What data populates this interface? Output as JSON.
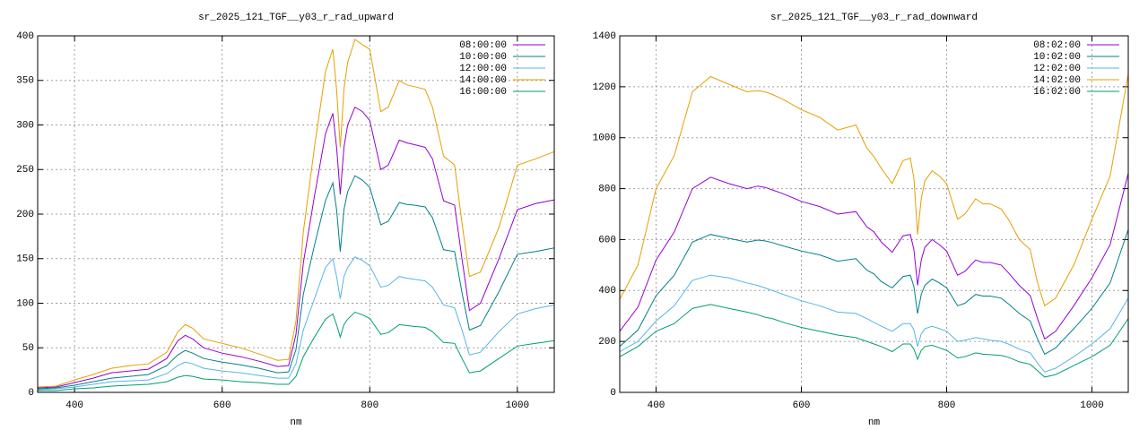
{
  "chart_data": [
    {
      "type": "line",
      "title": "sr_2025_121_TGF__y03_r_rad_upward",
      "x_label": "nm",
      "x": [
        350,
        375,
        400,
        425,
        450,
        475,
        500,
        525,
        540,
        550,
        560,
        575,
        600,
        625,
        650,
        675,
        690,
        700,
        710,
        725,
        740,
        750,
        755,
        760,
        765,
        770,
        780,
        790,
        800,
        815,
        825,
        840,
        850,
        860,
        875,
        885,
        900,
        915,
        925,
        935,
        950,
        975,
        1000,
        1025,
        1050
      ],
      "xlim": [
        350,
        1050
      ],
      "xticks": [
        400,
        600,
        800,
        1000
      ],
      "ylim": [
        0,
        400
      ],
      "yticks": [
        0,
        50,
        100,
        150,
        200,
        250,
        300,
        350,
        400
      ],
      "grid": true,
      "legend": "top-right",
      "series": [
        {
          "name": "08:00:00",
          "color": "#9400d3",
          "values": [
            5,
            6,
            11,
            16,
            22,
            24,
            26,
            38,
            58,
            64,
            60,
            50,
            44,
            40,
            35,
            29,
            30,
            65,
            145,
            220,
            290,
            313,
            275,
            222,
            275,
            300,
            320,
            315,
            305,
            250,
            255,
            283,
            280,
            278,
            275,
            262,
            215,
            210,
            150,
            92,
            100,
            150,
            205,
            212,
            216
          ]
        },
        {
          "name": "10:00:00",
          "color": "#00808a",
          "values": [
            4,
            5,
            8,
            12,
            16,
            18,
            20,
            30,
            42,
            47,
            44,
            38,
            34,
            31,
            27,
            22,
            23,
            48,
            110,
            165,
            215,
            235,
            205,
            158,
            205,
            225,
            243,
            238,
            230,
            188,
            192,
            213,
            211,
            210,
            208,
            196,
            160,
            158,
            112,
            70,
            75,
            113,
            155,
            158,
            162
          ]
        },
        {
          "name": "12:00:00",
          "color": "#56b4e9",
          "values": [
            3,
            4,
            6,
            9,
            12,
            13,
            14,
            21,
            30,
            34,
            32,
            27,
            24,
            22,
            19,
            16,
            16,
            32,
            70,
            105,
            140,
            150,
            130,
            105,
            130,
            140,
            152,
            148,
            142,
            118,
            120,
            130,
            128,
            127,
            125,
            118,
            98,
            95,
            70,
            42,
            45,
            68,
            88,
            94,
            98
          ]
        },
        {
          "name": "14:00:00",
          "color": "#e69f00",
          "values": [
            6,
            7,
            14,
            20,
            27,
            30,
            32,
            45,
            68,
            76,
            72,
            60,
            55,
            50,
            43,
            36,
            37,
            80,
            180,
            275,
            360,
            385,
            340,
            275,
            340,
            370,
            396,
            390,
            385,
            315,
            320,
            350,
            345,
            343,
            340,
            320,
            265,
            255,
            190,
            130,
            135,
            185,
            255,
            262,
            270
          ]
        },
        {
          "name": "16:00:00",
          "color": "#009e73",
          "values": [
            2,
            2,
            4,
            5,
            7,
            8,
            9,
            12,
            17,
            19,
            18,
            15,
            14,
            12,
            11,
            9,
            9,
            18,
            40,
            62,
            82,
            88,
            76,
            62,
            76,
            82,
            90,
            87,
            83,
            65,
            67,
            76,
            75,
            74,
            73,
            68,
            56,
            55,
            38,
            22,
            24,
            38,
            52,
            55,
            58
          ]
        }
      ]
    },
    {
      "type": "line",
      "title": "sr_2025_121_TGF__y03_r_rad_downward",
      "x_label": "nm",
      "x": [
        350,
        375,
        400,
        425,
        450,
        475,
        500,
        525,
        540,
        550,
        560,
        575,
        600,
        625,
        650,
        675,
        690,
        700,
        710,
        725,
        740,
        750,
        755,
        760,
        765,
        770,
        780,
        790,
        800,
        815,
        825,
        840,
        850,
        860,
        875,
        885,
        900,
        915,
        925,
        935,
        950,
        975,
        1000,
        1025,
        1050
      ],
      "xlim": [
        350,
        1050
      ],
      "xticks": [
        400,
        600,
        800,
        1000
      ],
      "ylim": [
        0,
        1400
      ],
      "yticks": [
        0,
        200,
        400,
        600,
        800,
        1000,
        1200,
        1400
      ],
      "grid": true,
      "legend": "top-right",
      "series": [
        {
          "name": "08:02:00",
          "color": "#9400d3",
          "values": [
            240,
            335,
            520,
            630,
            800,
            845,
            820,
            800,
            810,
            805,
            795,
            780,
            750,
            730,
            700,
            710,
            650,
            630,
            590,
            550,
            615,
            620,
            560,
            420,
            520,
            570,
            600,
            580,
            555,
            460,
            475,
            520,
            510,
            510,
            500,
            470,
            420,
            380,
            290,
            210,
            240,
            340,
            450,
            580,
            860
          ]
        },
        {
          "name": "10:02:00",
          "color": "#00808a",
          "values": [
            180,
            245,
            380,
            460,
            590,
            620,
            605,
            590,
            598,
            595,
            588,
            575,
            555,
            540,
            515,
            525,
            480,
            465,
            435,
            410,
            455,
            460,
            415,
            310,
            385,
            420,
            445,
            430,
            410,
            340,
            350,
            385,
            378,
            378,
            370,
            348,
            310,
            280,
            210,
            150,
            175,
            250,
            330,
            430,
            640
          ]
        },
        {
          "name": "12:02:00",
          "color": "#56b4e9",
          "values": [
            160,
            200,
            280,
            340,
            440,
            460,
            450,
            430,
            420,
            410,
            400,
            385,
            360,
            340,
            315,
            310,
            290,
            275,
            260,
            240,
            270,
            270,
            245,
            180,
            230,
            250,
            260,
            250,
            240,
            200,
            205,
            215,
            210,
            205,
            200,
            190,
            170,
            155,
            115,
            80,
            95,
            140,
            190,
            250,
            370
          ]
        },
        {
          "name": "14:02:00",
          "color": "#e69f00",
          "values": [
            365,
            500,
            800,
            930,
            1180,
            1240,
            1210,
            1180,
            1185,
            1180,
            1170,
            1150,
            1110,
            1080,
            1030,
            1050,
            960,
            925,
            880,
            820,
            910,
            920,
            840,
            620,
            760,
            830,
            870,
            850,
            820,
            680,
            700,
            760,
            740,
            740,
            720,
            680,
            600,
            560,
            430,
            340,
            370,
            500,
            680,
            850,
            1250
          ]
        },
        {
          "name": "16:02:00",
          "color": "#009e73",
          "values": [
            140,
            180,
            240,
            270,
            330,
            345,
            330,
            315,
            305,
            295,
            290,
            275,
            255,
            240,
            225,
            215,
            200,
            190,
            180,
            160,
            190,
            190,
            170,
            130,
            165,
            180,
            185,
            175,
            165,
            135,
            140,
            155,
            150,
            148,
            145,
            138,
            120,
            110,
            85,
            60,
            70,
            105,
            140,
            185,
            290
          ]
        }
      ]
    }
  ]
}
